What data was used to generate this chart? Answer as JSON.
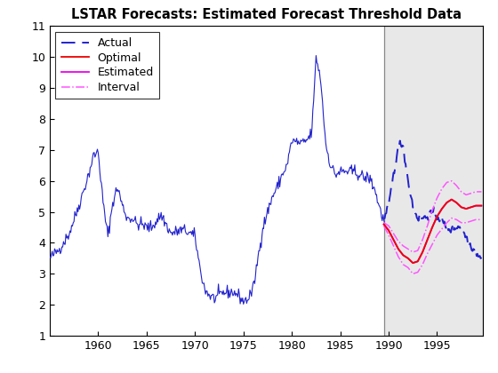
{
  "title": "LSTAR Forecasts: Estimated Forecast Threshold Data",
  "xlim": [
    1955.0,
    1999.75
  ],
  "ylim": [
    1,
    11
  ],
  "yticks": [
    1,
    2,
    3,
    4,
    5,
    6,
    7,
    8,
    9,
    10,
    11
  ],
  "xticks": [
    1960,
    1965,
    1970,
    1975,
    1980,
    1985,
    1990,
    1995
  ],
  "forecast_start": 1989.5,
  "forecast_end": 1999.75,
  "forecast_bg": "#e8e8e8",
  "actual_color": "#2222cc",
  "optimal_color": "#ee0000",
  "estimated_color": "#ee00ee",
  "interval_color": "#ff55ff",
  "legend_loc": "upper left",
  "title_fontsize": 10.5,
  "tick_fontsize": 9,
  "legend_fontsize": 9,
  "hist_knots_x": [
    1955,
    1956,
    1957,
    1958,
    1959,
    1959.5,
    1960,
    1960.5,
    1961,
    1961.5,
    1962,
    1962.5,
    1963,
    1963.5,
    1964,
    1964.5,
    1965,
    1965.5,
    1966,
    1966.5,
    1967,
    1967.5,
    1968,
    1968.5,
    1969,
    1969.5,
    1970,
    1970.5,
    1971,
    1971.5,
    1972,
    1972.5,
    1973,
    1974,
    1974.5,
    1975,
    1975.5,
    1976,
    1976.5,
    1977,
    1977.5,
    1978,
    1978.5,
    1979,
    1979.5,
    1980,
    1980.5,
    1981,
    1981.5,
    1982,
    1982.25,
    1982.5,
    1983,
    1983.5,
    1984,
    1984.5,
    1985,
    1985.5,
    1986,
    1986.5,
    1987,
    1987.5,
    1988,
    1988.5,
    1989,
    1989.5
  ],
  "hist_knots_y": [
    3.5,
    3.8,
    4.3,
    5.2,
    6.2,
    6.8,
    6.95,
    5.3,
    4.2,
    5.3,
    5.8,
    5.2,
    4.8,
    4.8,
    4.6,
    4.6,
    4.5,
    4.5,
    4.7,
    4.9,
    4.6,
    4.3,
    4.35,
    4.4,
    4.4,
    4.3,
    4.2,
    3.2,
    2.5,
    2.3,
    2.2,
    2.3,
    2.4,
    2.4,
    2.3,
    2.1,
    2.2,
    2.5,
    3.5,
    4.5,
    5.0,
    5.5,
    5.8,
    6.2,
    6.5,
    7.3,
    7.25,
    7.2,
    7.3,
    7.5,
    8.5,
    10.05,
    9.2,
    7.2,
    6.5,
    6.2,
    6.3,
    6.3,
    6.3,
    6.3,
    6.2,
    6.1,
    6.1,
    5.8,
    5.2,
    4.7
  ],
  "fc_actual_knots_x": [
    1989.5,
    1990.0,
    1990.5,
    1991.0,
    1991.25,
    1991.5,
    1992.0,
    1992.5,
    1993.0,
    1993.25,
    1993.5,
    1994.0,
    1994.5,
    1995.0,
    1995.5,
    1996.0,
    1996.5,
    1997.0,
    1997.25,
    1997.5,
    1998.0,
    1998.5,
    1999.0,
    1999.5
  ],
  "fc_actual_knots_y": [
    4.7,
    5.2,
    6.2,
    7.1,
    7.25,
    7.1,
    6.0,
    5.2,
    4.8,
    4.75,
    4.8,
    4.85,
    5.0,
    4.85,
    4.7,
    4.5,
    4.4,
    4.5,
    4.55,
    4.4,
    4.2,
    3.9,
    3.7,
    3.55
  ],
  "est_knots_x": [
    1989.5,
    1990.0,
    1990.5,
    1991.0,
    1991.5,
    1992.0,
    1992.5,
    1993.0,
    1993.5,
    1994.0,
    1994.5,
    1995.0,
    1995.5,
    1996.0,
    1996.5,
    1997.0,
    1997.5,
    1998.0,
    1998.5,
    1999.0,
    1999.5
  ],
  "est_knots_y": [
    4.6,
    4.4,
    4.1,
    3.8,
    3.6,
    3.5,
    3.35,
    3.4,
    3.7,
    4.1,
    4.5,
    4.85,
    5.1,
    5.3,
    5.4,
    5.3,
    5.15,
    5.1,
    5.15,
    5.2,
    5.2
  ],
  "opt_knots_x": [
    1989.5,
    1990.0,
    1990.5,
    1991.0,
    1991.5,
    1992.0,
    1992.5,
    1993.0,
    1993.5,
    1994.0,
    1994.5,
    1995.0,
    1995.5,
    1996.0,
    1996.5,
    1997.0,
    1997.5,
    1998.0,
    1998.5,
    1999.0,
    1999.5
  ],
  "opt_knots_y": [
    4.6,
    4.4,
    4.1,
    3.8,
    3.6,
    3.5,
    3.35,
    3.4,
    3.7,
    4.1,
    4.5,
    4.85,
    5.1,
    5.3,
    5.4,
    5.3,
    5.15,
    5.1,
    5.15,
    5.2,
    5.2
  ],
  "int_up_knots_x": [
    1989.5,
    1990.0,
    1990.5,
    1991.0,
    1991.5,
    1992.0,
    1992.5,
    1993.0,
    1993.5,
    1994.0,
    1994.5,
    1995.0,
    1995.5,
    1996.0,
    1996.5,
    1997.0,
    1997.5,
    1998.0,
    1998.5,
    1999.0,
    1999.5
  ],
  "int_up_knots_y": [
    4.65,
    4.55,
    4.3,
    4.05,
    3.9,
    3.8,
    3.7,
    3.75,
    4.1,
    4.55,
    5.05,
    5.45,
    5.75,
    5.95,
    6.0,
    5.85,
    5.65,
    5.55,
    5.6,
    5.65,
    5.65
  ],
  "int_lo_knots_x": [
    1989.5,
    1990.0,
    1990.5,
    1991.0,
    1991.5,
    1992.0,
    1992.5,
    1993.0,
    1993.5,
    1994.0,
    1994.5,
    1995.0,
    1995.5,
    1996.0,
    1996.5,
    1997.0,
    1997.5,
    1998.0,
    1998.5,
    1999.0,
    1999.5
  ],
  "int_lo_knots_y": [
    4.55,
    4.25,
    3.9,
    3.55,
    3.3,
    3.2,
    3.0,
    3.05,
    3.3,
    3.65,
    3.95,
    4.25,
    4.45,
    4.65,
    4.8,
    4.75,
    4.65,
    4.65,
    4.7,
    4.75,
    4.75
  ]
}
